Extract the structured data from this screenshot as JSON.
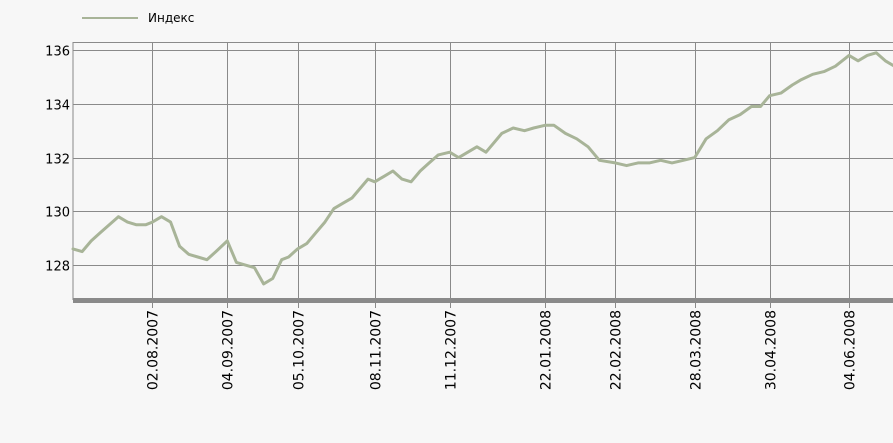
{
  "chart_data": {
    "type": "line",
    "legend": {
      "label": "Индекс",
      "position": "top-left"
    },
    "line_color": "#a8b498",
    "grid": true,
    "ylim": [
      126.7,
      136.3
    ],
    "yticks": [
      128,
      130,
      132,
      134,
      136
    ],
    "xticks": [
      "02.08.2007",
      "04.09.2007",
      "05.10.2007",
      "08.11.2007",
      "11.12.2007",
      "22.01.2008",
      "22.02.2008",
      "28.03.2008",
      "30.04.2008",
      "04.06.2008"
    ],
    "series": [
      {
        "name": "Индекс",
        "x": [
          "2007-06-28",
          "2007-07-02",
          "2007-07-06",
          "2007-07-10",
          "2007-07-14",
          "2007-07-18",
          "2007-07-22",
          "2007-07-26",
          "2007-07-30",
          "2007-08-02",
          "2007-08-06",
          "2007-08-10",
          "2007-08-14",
          "2007-08-18",
          "2007-08-22",
          "2007-08-26",
          "2007-08-30",
          "2007-09-04",
          "2007-09-08",
          "2007-09-12",
          "2007-09-16",
          "2007-09-20",
          "2007-09-24",
          "2007-09-28",
          "2007-10-01",
          "2007-10-05",
          "2007-10-09",
          "2007-10-13",
          "2007-10-17",
          "2007-10-21",
          "2007-10-25",
          "2007-10-29",
          "2007-11-02",
          "2007-11-05",
          "2007-11-08",
          "2007-11-12",
          "2007-11-16",
          "2007-11-20",
          "2007-11-24",
          "2007-11-28",
          "2007-12-02",
          "2007-12-06",
          "2007-12-11",
          "2007-12-15",
          "2007-12-19",
          "2007-12-23",
          "2007-12-27",
          "2008-01-03",
          "2008-01-08",
          "2008-01-13",
          "2008-01-17",
          "2008-01-22",
          "2008-01-26",
          "2008-01-31",
          "2008-02-05",
          "2008-02-10",
          "2008-02-15",
          "2008-02-22",
          "2008-02-27",
          "2008-03-03",
          "2008-03-08",
          "2008-03-13",
          "2008-03-18",
          "2008-03-23",
          "2008-03-28",
          "2008-04-02",
          "2008-04-07",
          "2008-04-12",
          "2008-04-17",
          "2008-04-22",
          "2008-04-26",
          "2008-04-30",
          "2008-05-05",
          "2008-05-10",
          "2008-05-14",
          "2008-05-19",
          "2008-05-24",
          "2008-05-29",
          "2008-06-04",
          "2008-06-08",
          "2008-06-12",
          "2008-06-16",
          "2008-06-20",
          "2008-06-24",
          "2008-06-28"
        ],
        "values": [
          128.6,
          128.5,
          128.9,
          129.2,
          129.5,
          129.8,
          129.6,
          129.5,
          129.5,
          129.6,
          129.8,
          129.6,
          128.7,
          128.4,
          128.3,
          128.2,
          128.5,
          128.9,
          128.1,
          128.0,
          127.9,
          127.3,
          127.5,
          128.2,
          128.3,
          128.6,
          128.8,
          129.2,
          129.6,
          130.1,
          130.3,
          130.5,
          130.9,
          131.2,
          131.1,
          131.3,
          131.5,
          131.2,
          131.1,
          131.5,
          131.8,
          132.1,
          132.2,
          132.0,
          132.2,
          132.4,
          132.2,
          132.9,
          133.1,
          133.0,
          133.1,
          133.2,
          133.2,
          132.9,
          132.7,
          132.4,
          131.9,
          131.8,
          131.7,
          131.8,
          131.8,
          131.9,
          131.8,
          131.9,
          132.0,
          132.7,
          133.0,
          133.4,
          133.6,
          133.9,
          133.9,
          134.3,
          134.4,
          134.7,
          134.9,
          135.1,
          135.2,
          135.4,
          135.8,
          135.6,
          135.8,
          135.9,
          135.6,
          135.4,
          135.2
        ]
      }
    ]
  }
}
